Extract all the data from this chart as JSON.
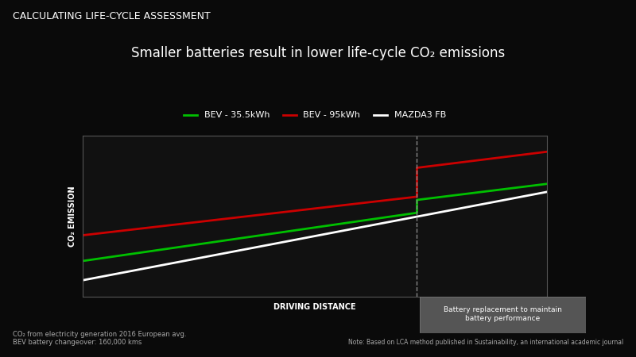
{
  "bg_color": "#0a0a0a",
  "plot_bg_color": "#111111",
  "title_top": "CALCULATING LIFE-CYCLE ASSESSMENT",
  "title_main": "Smaller batteries result in lower life-cycle CO₂ emissions",
  "xlabel": "DRIVING DISTANCE",
  "ylabel": "CO₂ EMISSION",
  "footnote_left": "CO₂ from electricity generation 2016 European avg.\nBEV battery changeover: 160,000 kms",
  "footnote_right": "Note: Based on LCA method published in Sustainability, an international academic journal",
  "annotation_box": "Battery replacement to maintain\nbattery performance",
  "legend_labels": [
    "BEV - 35.5kWh",
    "BEV - 95kWh",
    "MAZDA3 FB"
  ],
  "legend_colors": [
    "#00c000",
    "#cc0000",
    "#ffffff"
  ],
  "line_bev35": {
    "x": [
      0,
      0.72,
      0.72,
      1.0
    ],
    "y": [
      0.22,
      0.52,
      0.6,
      0.7
    ],
    "color": "#00c000",
    "lw": 2.0
  },
  "line_bev95": {
    "x": [
      0,
      0.72,
      0.72,
      1.0
    ],
    "y": [
      0.38,
      0.62,
      0.8,
      0.9
    ],
    "color": "#cc0000",
    "lw": 2.0
  },
  "line_mazda": {
    "x": [
      0,
      1.0
    ],
    "y": [
      0.1,
      0.65
    ],
    "color": "#ffffff",
    "lw": 2.0
  },
  "vline_x": 0.72,
  "vline_color": "#888888",
  "vline_style": "--"
}
